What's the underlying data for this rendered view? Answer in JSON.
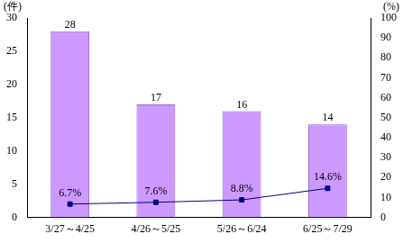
{
  "chart_data": {
    "type": "bar",
    "categories": [
      "3/27～4/25",
      "4/26～5/25",
      "5/26～6/24",
      "6/25～7/29"
    ],
    "y_label": "(件)",
    "y2_label": "(%)",
    "ylim": [
      0,
      30
    ],
    "yticks": [
      0,
      5,
      10,
      15,
      20,
      25,
      30
    ],
    "y2lim": [
      0,
      100
    ],
    "y2ticks": [
      0,
      10,
      20,
      30,
      40,
      50,
      60,
      70,
      80,
      90,
      100
    ],
    "grid": false,
    "series": [
      {
        "type": "bar",
        "color": "#cc99ff",
        "values": [
          28,
          17,
          16,
          14
        ],
        "data_labels": true
      },
      {
        "type": "line",
        "axis": "y2",
        "color": "#000080",
        "marker": "square",
        "line_style": "solid",
        "values": [
          6.7,
          7.6,
          8.8,
          14.6
        ],
        "value_labels": [
          "6.7%",
          "7.6%",
          "8.8%",
          "14.6%"
        ],
        "data_labels": true
      }
    ]
  }
}
